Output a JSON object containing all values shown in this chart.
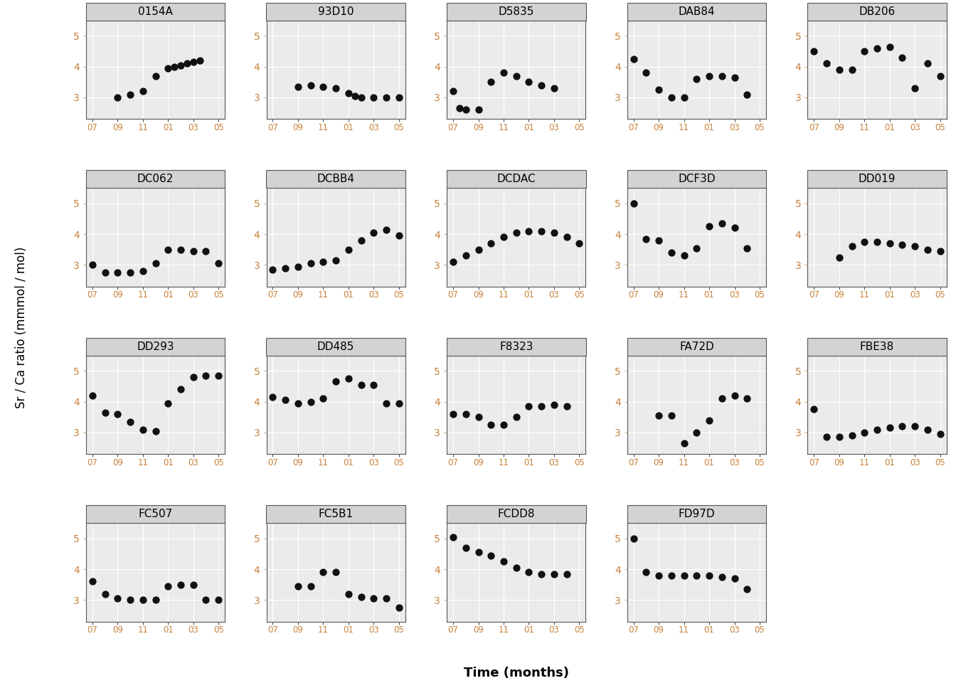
{
  "title_y": "Sr / Ca ratio (mmmol / mol)",
  "title_x": "Time (months)",
  "ylim": [
    2.3,
    5.5
  ],
  "yticks": [
    3,
    4,
    5
  ],
  "panel_bg": "#ebebeb",
  "dot_color": "#111111",
  "dot_size": 55,
  "panels": [
    {
      "name": "0154A",
      "x": [
        9,
        10,
        11,
        12,
        1,
        1.5,
        2,
        2.5,
        3,
        3.5
      ],
      "y": [
        3.0,
        3.1,
        3.2,
        3.7,
        3.95,
        4.0,
        4.05,
        4.1,
        4.15,
        4.2
      ]
    },
    {
      "name": "93D10",
      "x": [
        9,
        10,
        11,
        12,
        1,
        1.5,
        2,
        3,
        4,
        5
      ],
      "y": [
        3.35,
        3.4,
        3.35,
        3.3,
        3.15,
        3.05,
        3.0,
        3.0,
        3.0,
        3.0
      ]
    },
    {
      "name": "D5835",
      "x": [
        7,
        7.5,
        8,
        9,
        10,
        11,
        12,
        1,
        2,
        3
      ],
      "y": [
        3.2,
        2.65,
        2.6,
        2.6,
        3.5,
        3.8,
        3.7,
        3.5,
        3.4,
        3.3
      ]
    },
    {
      "name": "DAB84",
      "x": [
        7,
        8,
        9,
        10,
        11,
        12,
        1,
        2,
        3,
        4
      ],
      "y": [
        4.25,
        3.8,
        3.25,
        3.0,
        3.0,
        3.6,
        3.7,
        3.7,
        3.65,
        3.1
      ]
    },
    {
      "name": "DB206",
      "x": [
        7,
        8,
        9,
        10,
        11,
        12,
        1,
        2,
        3,
        4,
        5
      ],
      "y": [
        4.5,
        4.1,
        3.9,
        3.9,
        4.5,
        4.6,
        4.65,
        4.3,
        3.3,
        4.1,
        3.7
      ]
    },
    {
      "name": "DC062",
      "x": [
        7,
        8,
        9,
        10,
        11,
        12,
        1,
        2,
        3,
        4,
        5
      ],
      "y": [
        3.0,
        2.75,
        2.75,
        2.75,
        2.8,
        3.05,
        3.5,
        3.5,
        3.45,
        3.45,
        3.05
      ]
    },
    {
      "name": "DCBB4",
      "x": [
        7,
        8,
        9,
        10,
        11,
        12,
        1,
        2,
        3,
        4,
        5
      ],
      "y": [
        2.85,
        2.9,
        2.95,
        3.05,
        3.1,
        3.15,
        3.5,
        3.8,
        4.05,
        4.15,
        3.95
      ]
    },
    {
      "name": "DCDAC",
      "x": [
        7,
        8,
        9,
        10,
        11,
        12,
        1,
        2,
        3,
        4,
        5
      ],
      "y": [
        3.1,
        3.3,
        3.5,
        3.7,
        3.9,
        4.05,
        4.1,
        4.1,
        4.05,
        3.9,
        3.7
      ]
    },
    {
      "name": "DCF3D",
      "x": [
        7,
        8,
        9,
        10,
        11,
        12,
        1,
        2,
        3,
        4
      ],
      "y": [
        5.0,
        3.85,
        3.8,
        3.4,
        3.3,
        3.55,
        4.25,
        4.35,
        4.2,
        3.55
      ]
    },
    {
      "name": "DD019",
      "x": [
        9,
        10,
        11,
        12,
        1,
        2,
        3,
        4,
        5
      ],
      "y": [
        3.25,
        3.6,
        3.75,
        3.75,
        3.7,
        3.65,
        3.6,
        3.5,
        3.45
      ]
    },
    {
      "name": "DD293",
      "x": [
        7,
        8,
        9,
        10,
        11,
        12,
        1,
        2,
        3,
        4,
        5
      ],
      "y": [
        4.2,
        3.65,
        3.6,
        3.35,
        3.1,
        3.05,
        3.95,
        4.4,
        4.8,
        4.85,
        4.85
      ]
    },
    {
      "name": "DD485",
      "x": [
        7,
        8,
        9,
        10,
        11,
        12,
        1,
        2,
        3,
        4,
        5
      ],
      "y": [
        4.15,
        4.05,
        3.95,
        4.0,
        4.1,
        4.65,
        4.75,
        4.55,
        4.55,
        3.95,
        3.95
      ]
    },
    {
      "name": "F8323",
      "x": [
        7,
        8,
        9,
        10,
        11,
        12,
        1,
        2,
        3,
        4
      ],
      "y": [
        3.6,
        3.6,
        3.5,
        3.25,
        3.25,
        3.5,
        3.85,
        3.85,
        3.9,
        3.85
      ]
    },
    {
      "name": "FA72D",
      "x": [
        9,
        10,
        11,
        12,
        1,
        2,
        3,
        4
      ],
      "y": [
        3.55,
        3.55,
        2.65,
        3.0,
        3.4,
        4.1,
        4.2,
        4.1
      ]
    },
    {
      "name": "FBE38",
      "x": [
        7,
        8,
        9,
        10,
        11,
        12,
        1,
        2,
        3,
        4,
        5
      ],
      "y": [
        3.75,
        2.85,
        2.85,
        2.9,
        3.0,
        3.1,
        3.15,
        3.2,
        3.2,
        3.1,
        2.95
      ]
    },
    {
      "name": "FC507",
      "x": [
        7,
        8,
        9,
        10,
        11,
        12,
        1,
        2,
        3,
        4,
        5
      ],
      "y": [
        3.6,
        3.2,
        3.05,
        3.0,
        3.0,
        3.0,
        3.45,
        3.5,
        3.5,
        3.0,
        3.0
      ]
    },
    {
      "name": "FC5B1",
      "x": [
        9,
        10,
        11,
        12,
        1,
        2,
        3,
        4,
        5
      ],
      "y": [
        3.45,
        3.45,
        3.9,
        3.9,
        3.2,
        3.1,
        3.05,
        3.05,
        2.75
      ]
    },
    {
      "name": "FCDD8",
      "x": [
        7,
        8,
        9,
        10,
        11,
        12,
        1,
        2,
        3,
        4
      ],
      "y": [
        5.05,
        4.7,
        4.55,
        4.45,
        4.25,
        4.05,
        3.9,
        3.85,
        3.85,
        3.85
      ]
    },
    {
      "name": "FD97D",
      "x": [
        7,
        8,
        9,
        10,
        11,
        12,
        1,
        2,
        3,
        4
      ],
      "y": [
        5.0,
        3.9,
        3.8,
        3.8,
        3.8,
        3.8,
        3.8,
        3.75,
        3.7,
        3.35
      ]
    }
  ],
  "nrows": 4,
  "ncols": 5,
  "grid_color": "#ffffff",
  "strip_bg": "#d3d3d3",
  "strip_border_color": "#555555",
  "strip_text_color": "#000000",
  "strip_fontsize": 11,
  "tick_label_color": "#c8813a",
  "ylabel_fontsize": 12,
  "xlabel_fontsize": 13,
  "ytick_fontsize": 10,
  "xtick_fontsize": 8.5
}
